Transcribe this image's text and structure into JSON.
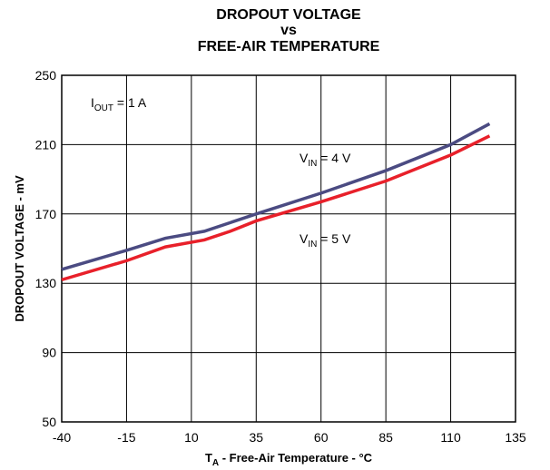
{
  "chart_data": {
    "type": "line",
    "title": [
      "DROPOUT VOLTAGE",
      "vs",
      "FREE-AIR TEMPERATURE"
    ],
    "x_label_parts": [
      "T",
      "A",
      " - Free-Air Temperature - °C"
    ],
    "y_label": "DROPOUT VOLTAGE - mV",
    "annotation_parts": [
      "I",
      "OUT",
      " = 1 A"
    ],
    "x": [
      -40,
      -15,
      0,
      15,
      25,
      35,
      60,
      85,
      110,
      125
    ],
    "series": [
      {
        "label_parts": [
          "V",
          "IN",
          " = 4 V"
        ],
        "color": "#4b4b82",
        "values": [
          138,
          149,
          156,
          160,
          165,
          170,
          182,
          195,
          210,
          222
        ]
      },
      {
        "label_parts": [
          "V",
          "IN",
          " = 5 V"
        ],
        "color": "#e8202a",
        "values": [
          132,
          143,
          151,
          155,
          160,
          166,
          177,
          189,
          204,
          215
        ]
      }
    ],
    "xlim": [
      -40,
      135
    ],
    "xticks": [
      -40,
      -15,
      10,
      35,
      60,
      85,
      110,
      135
    ],
    "ylim": [
      50,
      250
    ],
    "yticks": [
      50,
      90,
      130,
      170,
      210,
      250
    ],
    "grid": true
  }
}
